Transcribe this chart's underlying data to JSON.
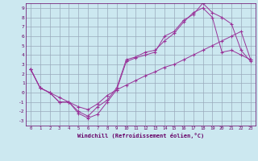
{
  "xlabel": "Windchill (Refroidissement éolien,°C)",
  "xlim": [
    -0.5,
    23.5
  ],
  "ylim": [
    -3.5,
    9.5
  ],
  "xticks": [
    0,
    1,
    2,
    3,
    4,
    5,
    6,
    7,
    8,
    9,
    10,
    11,
    12,
    13,
    14,
    15,
    16,
    17,
    18,
    19,
    20,
    21,
    22,
    23
  ],
  "yticks": [
    -3,
    -2,
    -1,
    0,
    1,
    2,
    3,
    4,
    5,
    6,
    7,
    8,
    9
  ],
  "bg_color": "#cce8f0",
  "grid_color": "#99aabb",
  "line_color": "#993399",
  "line1_x": [
    0,
    1,
    2,
    3,
    4,
    5,
    6,
    7,
    8,
    9,
    10,
    11,
    12,
    13,
    14,
    15,
    16,
    17,
    18,
    19,
    20,
    21,
    22,
    23
  ],
  "line1_y": [
    2.5,
    0.5,
    0.0,
    -1.0,
    -1.0,
    -2.2,
    -2.7,
    -2.3,
    -1.0,
    0.3,
    3.3,
    3.7,
    4.0,
    4.3,
    6.0,
    6.5,
    7.7,
    8.3,
    9.5,
    8.5,
    8.0,
    7.3,
    4.5,
    3.3
  ],
  "line2_x": [
    0,
    1,
    2,
    3,
    4,
    5,
    6,
    7,
    8,
    9,
    10,
    11,
    12,
    13,
    14,
    15,
    16,
    17,
    18,
    19,
    20,
    21,
    22,
    23
  ],
  "line2_y": [
    2.5,
    0.5,
    0.0,
    -1.0,
    -1.0,
    -2.0,
    -2.5,
    -1.5,
    -0.8,
    0.5,
    3.5,
    3.8,
    4.3,
    4.5,
    5.5,
    6.3,
    7.5,
    8.5,
    9.0,
    8.0,
    4.3,
    4.5,
    4.0,
    3.5
  ],
  "line3_x": [
    0,
    1,
    2,
    3,
    4,
    5,
    6,
    7,
    8,
    9,
    10,
    11,
    12,
    13,
    14,
    15,
    16,
    17,
    18,
    19,
    20,
    21,
    22,
    23
  ],
  "line3_y": [
    2.5,
    0.5,
    0.0,
    -0.5,
    -1.0,
    -1.5,
    -1.8,
    -1.2,
    -0.3,
    0.3,
    0.8,
    1.3,
    1.8,
    2.2,
    2.7,
    3.0,
    3.5,
    4.0,
    4.5,
    5.0,
    5.5,
    6.0,
    6.5,
    3.5
  ]
}
